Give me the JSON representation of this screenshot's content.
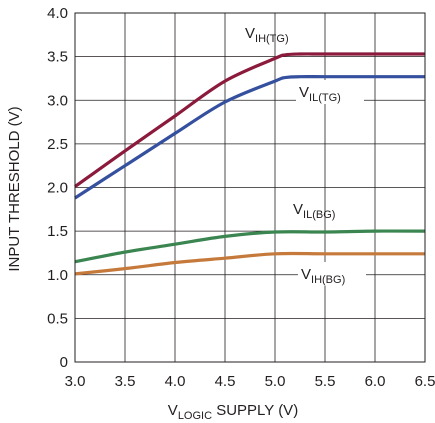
{
  "chart_data": {
    "type": "line",
    "title": "",
    "xlabel": {
      "main": "V",
      "sub": "LOGIC",
      "rest": " SUPPLY (V)"
    },
    "ylabel": "INPUT THRESHOLD (V)",
    "xlim": [
      3.0,
      6.5
    ],
    "ylim": [
      0,
      4.0
    ],
    "x_ticks": [
      "3.0",
      "3.5",
      "4.0",
      "4.5",
      "5.0",
      "5.5",
      "6.0",
      "6.5"
    ],
    "y_ticks": [
      "0",
      "0.5",
      "1.0",
      "1.5",
      "2.0",
      "2.5",
      "3.0",
      "3.5",
      "4.0"
    ],
    "grid": true,
    "series": [
      {
        "name": "VIH(TG)",
        "label_main": "V",
        "label_sub": "IH(TG)",
        "color": "#8b1a3c",
        "x": [
          3.0,
          3.5,
          4.0,
          4.5,
          5.0,
          5.1,
          5.25,
          5.5,
          6.0,
          6.5
        ],
        "y": [
          2.01,
          2.42,
          2.82,
          3.22,
          3.48,
          3.52,
          3.53,
          3.53,
          3.53,
          3.53
        ]
      },
      {
        "name": "VIL(TG)",
        "label_main": "V",
        "label_sub": "IL(TG)",
        "color": "#34509e",
        "x": [
          3.0,
          3.5,
          4.0,
          4.5,
          5.0,
          5.1,
          5.25,
          5.5,
          6.0,
          6.5
        ],
        "y": [
          1.88,
          2.25,
          2.62,
          2.98,
          3.22,
          3.26,
          3.27,
          3.27,
          3.27,
          3.27
        ]
      },
      {
        "name": "VIL(BG)",
        "label_main": "V",
        "label_sub": "IL(BG)",
        "color": "#3a8550",
        "x": [
          3.0,
          3.5,
          4.0,
          4.5,
          5.0,
          5.5,
          6.0,
          6.5
        ],
        "y": [
          1.15,
          1.26,
          1.35,
          1.44,
          1.49,
          1.49,
          1.5,
          1.5
        ]
      },
      {
        "name": "VIH(BG)",
        "label_main": "V",
        "label_sub": "IH(BG)",
        "color": "#c57a3c",
        "x": [
          3.0,
          3.5,
          4.0,
          4.5,
          5.0,
          5.5,
          6.0,
          6.5
        ],
        "y": [
          1.01,
          1.07,
          1.14,
          1.19,
          1.24,
          1.24,
          1.24,
          1.24
        ]
      }
    ]
  }
}
